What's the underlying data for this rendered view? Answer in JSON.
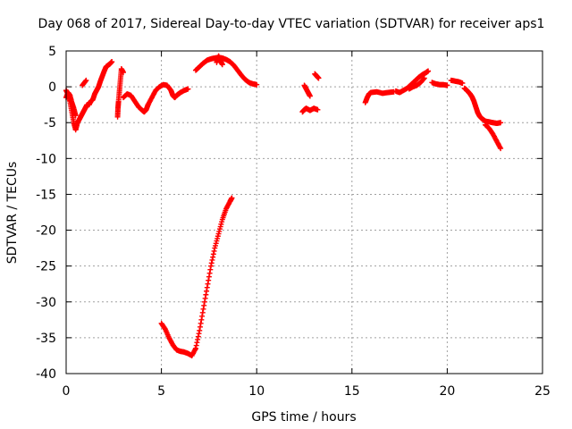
{
  "chart_data": {
    "type": "scatter",
    "title": "Day 068 of 2017, Sidereal Day-to-day VTEC variation (SDTVAR) for receiver aps1",
    "xlabel": "GPS time / hours",
    "ylabel": "SDTVAR / TECUs",
    "xlim": [
      0,
      25
    ],
    "ylim": [
      -40,
      5
    ],
    "xticks": [
      "0",
      "5",
      "10",
      "15",
      "20",
      "25"
    ],
    "yticks": [
      "5",
      "0",
      "-5",
      "-10",
      "-15",
      "-20",
      "-25",
      "-30",
      "-35",
      "-40"
    ],
    "grid": true,
    "marker": "plus",
    "color": "#ff0000",
    "series": [
      {
        "name": "SDTVAR",
        "segments": [
          {
            "x": [
              0.0,
              0.1,
              0.2,
              0.3,
              0.4,
              0.5,
              0.6,
              0.7,
              0.8,
              0.9,
              1.0,
              1.1,
              1.2
            ],
            "y": [
              -0.5,
              -1.0,
              -2.0,
              -3.5,
              -5.0,
              -6.0,
              -5.0,
              -4.5,
              -4.0,
              -3.5,
              -3.0,
              -2.5,
              -2.5
            ]
          },
          {
            "x": [
              0.0,
              0.1,
              0.2,
              0.3,
              0.4,
              0.5
            ],
            "y": [
              -1.5,
              -0.8,
              -1.2,
              -2.2,
              -3.0,
              -4.0
            ]
          },
          {
            "x": [
              1.2,
              1.3,
              1.4,
              1.5,
              1.6,
              1.7,
              1.8,
              1.9,
              2.0,
              2.1,
              2.2,
              2.3,
              2.4
            ],
            "y": [
              -2.5,
              -2.0,
              -1.8,
              -1.0,
              -0.5,
              0.0,
              0.8,
              1.5,
              2.2,
              2.8,
              3.0,
              3.2,
              3.5
            ]
          },
          {
            "x": [
              0.85,
              1.05
            ],
            "y": [
              0.2,
              0.9
            ]
          },
          {
            "x": [
              2.7,
              2.72,
              2.75,
              2.8,
              2.85,
              2.9,
              3.0
            ],
            "y": [
              -4.2,
              -3.0,
              -2.0,
              -0.5,
              1.0,
              2.5,
              2.0
            ]
          },
          {
            "x": [
              3.0,
              3.2,
              3.4,
              3.6,
              3.8,
              4.0,
              4.1,
              4.2,
              4.3
            ],
            "y": [
              -1.5,
              -1.0,
              -1.2,
              -2.0,
              -2.8,
              -3.3,
              -3.5,
              -3.2,
              -2.5
            ]
          },
          {
            "x": [
              4.3,
              4.5,
              4.7,
              4.9,
              5.1,
              5.3,
              5.5,
              5.6,
              5.7,
              5.8,
              5.9,
              6.0,
              6.2,
              6.4
            ],
            "y": [
              -2.5,
              -1.5,
              -0.5,
              0.0,
              0.3,
              0.2,
              -0.5,
              -1.2,
              -1.5,
              -1.2,
              -1.0,
              -0.8,
              -0.5,
              -0.3
            ]
          },
          {
            "x": [
              5.0,
              5.2,
              5.4,
              5.6,
              5.8,
              6.0,
              6.2,
              6.4,
              6.6,
              6.8
            ],
            "y": [
              -33.0,
              -33.8,
              -35.0,
              -36.0,
              -36.7,
              -36.9,
              -37.0,
              -37.2,
              -37.5,
              -36.5
            ]
          },
          {
            "x": [
              6.8,
              7.0,
              7.2,
              7.4,
              7.6,
              7.8,
              8.0,
              8.2,
              8.4,
              8.6,
              8.7
            ],
            "y": [
              -36.5,
              -34.0,
              -31.0,
              -28.0,
              -25.0,
              -22.5,
              -20.5,
              -18.5,
              -17.0,
              -16.0,
              -15.5
            ]
          },
          {
            "x": [
              6.8,
              7.0,
              7.2,
              7.4,
              7.6,
              7.8,
              8.0,
              8.2,
              8.4,
              8.6,
              8.8,
              9.0,
              9.2,
              9.4,
              9.6,
              9.8,
              10.0
            ],
            "y": [
              2.3,
              2.8,
              3.3,
              3.7,
              3.9,
              4.0,
              4.1,
              4.0,
              3.8,
              3.5,
              3.0,
              2.3,
              1.6,
              1.0,
              0.6,
              0.4,
              0.3
            ]
          },
          {
            "x": [
              7.9,
              8.0,
              8.1,
              8.2
            ],
            "y": [
              3.4,
              4.3,
              3.6,
              3.1
            ]
          },
          {
            "x": [
              12.4,
              12.5,
              12.6,
              12.8,
              13.0,
              13.2
            ],
            "y": [
              -3.5,
              -3.2,
              -3.0,
              -3.3,
              -3.0,
              -3.2
            ]
          },
          {
            "x": [
              12.5,
              12.6,
              12.7,
              12.8
            ],
            "y": [
              0.2,
              -0.3,
              -0.8,
              -1.3
            ]
          },
          {
            "x": [
              13.05,
              13.15,
              13.25
            ],
            "y": [
              1.8,
              1.5,
              1.2
            ]
          },
          {
            "x": [
              15.7,
              15.8,
              15.9,
              16.0,
              16.3,
              16.6,
              16.9,
              17.2
            ],
            "y": [
              -2.2,
              -1.5,
              -1.0,
              -0.8,
              -0.7,
              -0.9,
              -0.8,
              -0.7
            ]
          },
          {
            "x": [
              17.3,
              17.5,
              17.7,
              17.9,
              18.1,
              18.3,
              18.5,
              18.7,
              18.9,
              19.0
            ],
            "y": [
              -0.6,
              -0.8,
              -0.5,
              -0.2,
              0.3,
              0.8,
              1.3,
              1.7,
              2.0,
              2.2
            ]
          },
          {
            "x": [
              18.0,
              18.2,
              18.4,
              18.6,
              18.8
            ],
            "y": [
              -0.3,
              0.0,
              0.2,
              0.6,
              1.2
            ]
          },
          {
            "x": [
              19.2,
              19.4,
              19.6,
              19.8,
              20.0
            ],
            "y": [
              0.6,
              0.4,
              0.3,
              0.3,
              0.2
            ]
          },
          {
            "x": [
              20.2,
              20.4,
              20.6,
              20.8
            ],
            "y": [
              0.9,
              0.8,
              0.7,
              0.5
            ]
          },
          {
            "x": [
              20.9,
              21.0,
              21.1,
              21.2,
              21.3,
              21.4,
              21.5,
              21.6,
              21.7,
              21.8,
              21.9,
              22.0
            ],
            "y": [
              -0.2,
              -0.4,
              -0.7,
              -1.0,
              -1.4,
              -2.0,
              -2.8,
              -3.6,
              -4.1,
              -4.4,
              -4.6,
              -4.8
            ]
          },
          {
            "x": [
              22.0,
              22.2,
              22.4,
              22.6,
              22.8
            ],
            "y": [
              -4.8,
              -4.9,
              -5.0,
              -5.1,
              -5.0
            ]
          },
          {
            "x": [
              22.0,
              22.2,
              22.4,
              22.6,
              22.8
            ],
            "y": [
              -5.3,
              -5.8,
              -6.6,
              -7.6,
              -8.6
            ]
          }
        ]
      }
    ]
  }
}
